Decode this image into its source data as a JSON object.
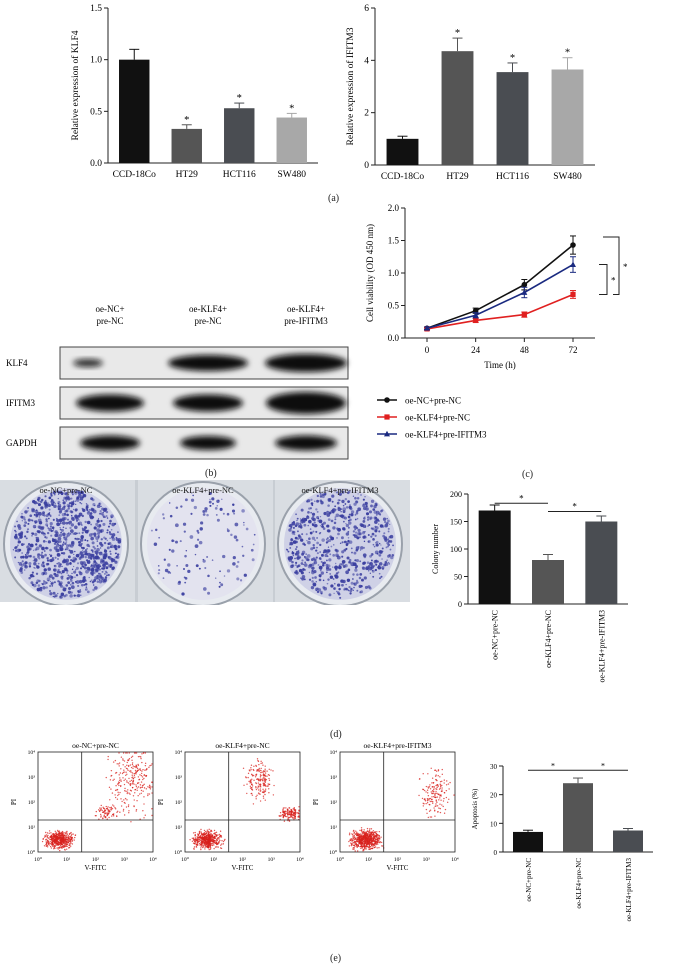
{
  "panel_labels": {
    "a": "(a)",
    "b": "(b)",
    "c": "(c)",
    "d": "(d)",
    "e": "(e)"
  },
  "chart_data": [
    {
      "id": "a1",
      "type": "bar",
      "ylabel": "Relative expression of KLF4",
      "categories": [
        "CCD-18Co",
        "HT29",
        "HCT116",
        "SW480"
      ],
      "values": [
        1.0,
        0.33,
        0.53,
        0.44
      ],
      "errors": [
        0.1,
        0.04,
        0.05,
        0.04
      ],
      "colors": [
        "#111111",
        "#555555",
        "#4a4d52",
        "#a8a8a8"
      ],
      "sig": [
        "",
        "*",
        "*",
        "*"
      ],
      "ylim": [
        0,
        1.5
      ],
      "yticks": [
        "0.0",
        "0.5",
        "1.0",
        "1.5"
      ]
    },
    {
      "id": "a2",
      "type": "bar",
      "ylabel": "Relative expression of IFITM3",
      "categories": [
        "CCD-18Co",
        "HT29",
        "HCT116",
        "SW480"
      ],
      "values": [
        1.0,
        4.35,
        3.55,
        3.65
      ],
      "errors": [
        0.1,
        0.5,
        0.35,
        0.45
      ],
      "colors": [
        "#111111",
        "#555555",
        "#4a4d52",
        "#a8a8a8"
      ],
      "sig": [
        "",
        "*",
        "*",
        "*"
      ],
      "ylim": [
        0,
        6
      ],
      "yticks": [
        "0",
        "2",
        "4",
        "6"
      ]
    },
    {
      "id": "c",
      "type": "line",
      "ylabel": "Cell viability (OD 450 nm)",
      "xlabel": "Time (h)",
      "x": [
        0,
        24,
        48,
        72
      ],
      "xticks": [
        "0",
        "24",
        "48",
        "72"
      ],
      "ylim": [
        0,
        2.0
      ],
      "yticks": [
        "0.0",
        "0.5",
        "1.0",
        "1.5",
        "2.0"
      ],
      "series": [
        {
          "name": "oe-NC+pre-NC",
          "values": [
            0.15,
            0.42,
            0.82,
            1.43
          ],
          "errors": [
            0.02,
            0.04,
            0.08,
            0.14
          ],
          "color": "#111111",
          "marker": "circle"
        },
        {
          "name": "oe-KLF4+pre-NC",
          "values": [
            0.14,
            0.27,
            0.36,
            0.67
          ],
          "errors": [
            0.02,
            0.03,
            0.04,
            0.06
          ],
          "color": "#e02020",
          "marker": "square"
        },
        {
          "name": "oe-KLF4+pre-IFITM3",
          "values": [
            0.15,
            0.35,
            0.7,
            1.13
          ],
          "errors": [
            0.02,
            0.04,
            0.08,
            0.12
          ],
          "color": "#1a2a80",
          "marker": "triangle"
        }
      ],
      "sig": [
        "*",
        "*"
      ],
      "legend_position": "bottom"
    },
    {
      "id": "d",
      "type": "bar",
      "ylabel": "Colony number",
      "categories": [
        "oe-NC+pre-NC",
        "oe-KLF4+pre-NC",
        "oe-KLF4+pre-IFITM3"
      ],
      "values": [
        170,
        80,
        150
      ],
      "errors": [
        10,
        10,
        10
      ],
      "colors": [
        "#111111",
        "#555555",
        "#4a4d52"
      ],
      "ylim": [
        0,
        200
      ],
      "yticks": [
        "0",
        "50",
        "100",
        "150",
        "200"
      ],
      "sig": [
        "*",
        "*"
      ]
    },
    {
      "id": "e",
      "type": "bar",
      "ylabel": "Apoptosis (%)",
      "categories": [
        "oe-NC+pre-NC",
        "oe-KLF4+pre-NC",
        "oe-KLF4+pre-IFITM3"
      ],
      "values": [
        7,
        24,
        7.5
      ],
      "errors": [
        0.6,
        1.8,
        0.7
      ],
      "colors": [
        "#111111",
        "#555555",
        "#4a4d52"
      ],
      "ylim": [
        0,
        30
      ],
      "yticks": [
        "0",
        "10",
        "20",
        "30"
      ],
      "sig": [
        "*",
        "*"
      ]
    }
  ],
  "western_blot": {
    "columns": [
      "oe-NC+\npre-NC",
      "oe-KLF4+\npre-NC",
      "oe-KLF4+\npre-IFITM3"
    ],
    "rows": [
      "KLF4",
      "IFITM3",
      "GAPDH"
    ]
  },
  "colony_plates": [
    "oe-NC+pre-NC",
    "oe-KLF4+pre-NC",
    "oe-KLF4+pre-IFITM3"
  ],
  "flow": {
    "titles": [
      "oe-NC+pre-NC",
      "oe-KLF4+pre-NC",
      "oe-KLF4+pre-IFITM3"
    ],
    "ylabel": "PI",
    "xlabel": "V-FITC",
    "ticks": [
      "10⁰",
      "10¹",
      "10²",
      "10³",
      "10⁴"
    ]
  }
}
